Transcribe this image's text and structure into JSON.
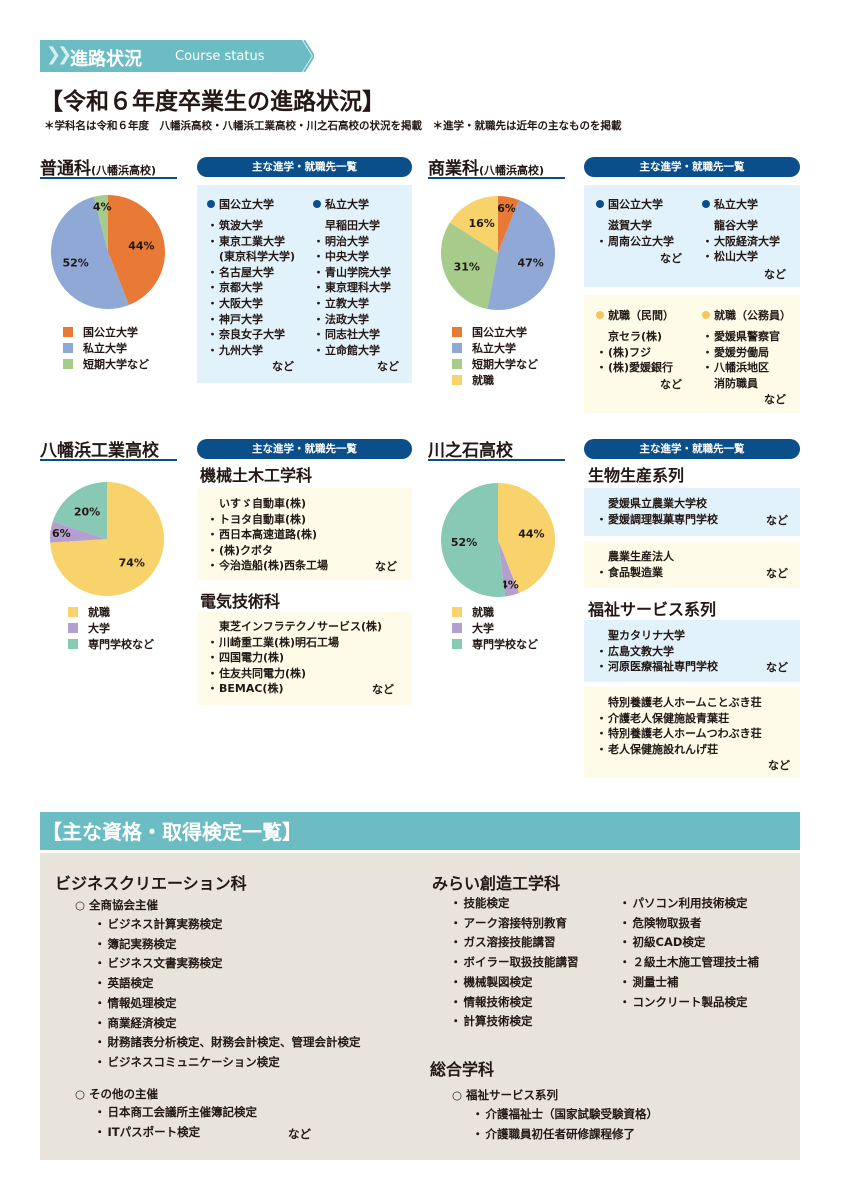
{
  "header": {
    "banner_jp": "進路状況",
    "banner_en": "Course status",
    "title": "【令和６年度卒業生の進路状況】",
    "note": "＊学科名は令和６年度　八幡浜高校・八幡浜工業高校・川之石高校の状況を掲載　＊進学・就職先は近年の主なものを掲載"
  },
  "colors": {
    "teal": "#6bbdc3",
    "navy": "#0a4f8a",
    "national": "#e87a35",
    "private": "#8fa8d6",
    "junior": "#a6cb8b",
    "job": "#f8d26b",
    "univ": "#b3a0d0",
    "vocational": "#88c9b5"
  },
  "pill_label": "主な進学・就職先一覧",
  "nado": "など",
  "futsuka": {
    "title": "普通科",
    "school": "(八幡浜高校)",
    "national_head": "国公立大学",
    "national": [
      "筑波大学",
      "東京工業大学",
      "(東京科学大学)",
      "名古屋大学",
      "京都大学",
      "大阪大学",
      "神戸大学",
      "奈良女子大学",
      "九州大学"
    ],
    "private_head": "私立大学",
    "private": [
      "早稲田大学",
      "明治大学",
      "中央大学",
      "青山学院大学",
      "東京理科大学",
      "立教大学",
      "法政大学",
      "同志社大学",
      "立命館大学"
    ]
  },
  "shogyo": {
    "title": "商業科",
    "school": "(八幡浜高校)",
    "national_head": "国公立大学",
    "national": [
      "滋賀大学",
      "周南公立大学"
    ],
    "private_head": "私立大学",
    "private": [
      "龍谷大学",
      "大阪経済大学",
      "松山大学"
    ],
    "job_head": "就職（民間）",
    "job": [
      "京セラ(株)",
      "(株)フジ",
      "(株)愛媛銀行"
    ],
    "public_head": "就職（公務員）",
    "public": [
      "愛媛県警察官",
      "愛媛労働局",
      "八幡浜地区",
      "消防職員"
    ]
  },
  "kogyo": {
    "title": "八幡浜工業高校",
    "dept1": "機械土木工学科",
    "dept1_list": [
      "いすゞ自動車(株)",
      "トヨタ自動車(株)",
      "西日本高速道路(株)",
      "(株)クボタ",
      "今治造船(株)西条工場"
    ],
    "dept2": "電気技術科",
    "dept2_list": [
      "東芝インフラテクノサービス(株)",
      "川崎重工業(株)明石工場",
      "四国電力(株)",
      "住友共同電力(株)",
      "BEMAC(株)"
    ]
  },
  "kawanoishi": {
    "title": "川之石高校",
    "dept1": "生物生産系列",
    "dept1_a": [
      "愛媛県立農業大学校",
      "愛媛調理製菓専門学校"
    ],
    "dept1_b": [
      "農業生産法人",
      "食品製造業"
    ],
    "dept2": "福祉サービス系列",
    "dept2_a": [
      "聖カタリナ大学",
      "広島文教大学",
      "河原医療福祉専門学校"
    ],
    "dept2_b": [
      "特別養護老人ホームことぶき荘",
      "介護老人保健施設青葉荘",
      "特別養護老人ホームつわぶき荘",
      "老人保健施設れんげ荘"
    ]
  },
  "chart_data": [
    {
      "type": "pie",
      "title": "普通科(八幡浜高校)",
      "labels": [
        "国公立大学",
        "私立大学",
        "短期大学など"
      ],
      "values": [
        44,
        52,
        4
      ],
      "colors": [
        "#e87a35",
        "#8fa8d6",
        "#a6cb8b"
      ]
    },
    {
      "type": "pie",
      "title": "商業科(八幡浜高校)",
      "labels": [
        "国公立大学",
        "私立大学",
        "短期大学など",
        "就職"
      ],
      "values": [
        6,
        47,
        31,
        16
      ],
      "colors": [
        "#e87a35",
        "#8fa8d6",
        "#a6cb8b",
        "#f8d26b"
      ]
    },
    {
      "type": "pie",
      "title": "八幡浜工業高校",
      "labels": [
        "就職",
        "大学",
        "専門学校など"
      ],
      "values": [
        74,
        6,
        20
      ],
      "colors": [
        "#f8d26b",
        "#b3a0d0",
        "#88c9b5"
      ]
    },
    {
      "type": "pie",
      "title": "川之石高校",
      "labels": [
        "就職",
        "大学",
        "専門学校など"
      ],
      "values": [
        44,
        4,
        52
      ],
      "colors": [
        "#f8d26b",
        "#b3a0d0",
        "#88c9b5"
      ]
    }
  ],
  "quals": {
    "title": "【主な資格・取得検定一覧】",
    "biz": {
      "title": "ビジネスクリエーション科",
      "group1": "全商協会主催",
      "group1_list": [
        "ビジネス計算実務検定",
        "簿記実務検定",
        "ビジネス文書実務検定",
        "英語検定",
        "情報処理検定",
        "商業経済検定",
        "財務諸表分析検定、財務会計検定、管理会計検定",
        "ビジネスコミュニケーション検定"
      ],
      "group2": "その他の主催",
      "group2_list": [
        "日本商工会議所主催簿記検定",
        "ITパスポート検定"
      ]
    },
    "mirai": {
      "title": "みらい創造工学科",
      "col1": [
        "技能検定",
        "アーク溶接特別教育",
        "ガス溶接技能講習",
        "ボイラー取扱技能講習",
        "機械製図検定",
        "情報技術検定",
        "計算技術検定"
      ],
      "col2": [
        "パソコン利用技術検定",
        "危険物取扱者",
        "初級CAD検定",
        "２級土木施工管理技士補",
        "測量士補",
        "コンクリート製品検定"
      ]
    },
    "sogo": {
      "title": "総合学科",
      "group": "福祉サービス系列",
      "list": [
        "介護福祉士（国家試験受験資格）",
        "介護職員初任者研修課程修了"
      ]
    }
  }
}
